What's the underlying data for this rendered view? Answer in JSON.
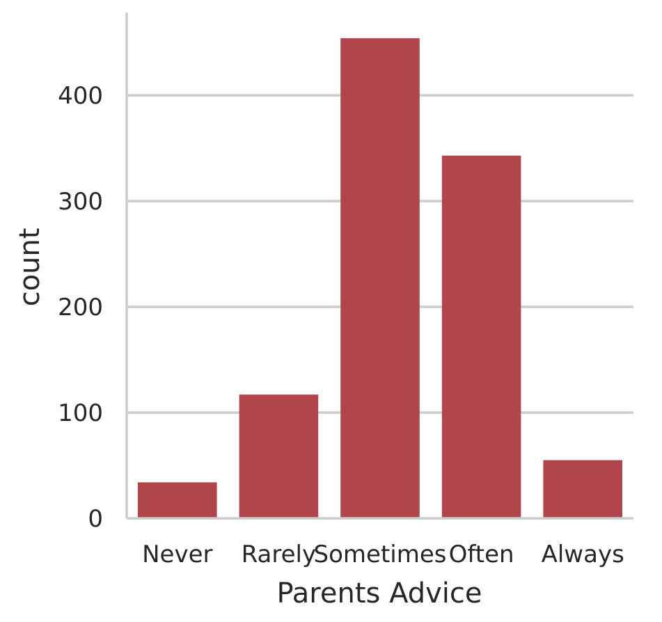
{
  "chart_data": {
    "type": "bar",
    "title": "",
    "xlabel": "Parents Advice",
    "ylabel": "count",
    "categories": [
      "Never",
      "Rarely",
      "Sometimes",
      "Often",
      "Always"
    ],
    "values": [
      34,
      117,
      454,
      343,
      55
    ],
    "ylim": [
      0,
      470
    ],
    "yticks": [
      0,
      100,
      200,
      300,
      400
    ],
    "grid": "horizontal",
    "bar_color": "#b0464b",
    "grid_color": "#cccccc",
    "text_color": "#262626"
  }
}
